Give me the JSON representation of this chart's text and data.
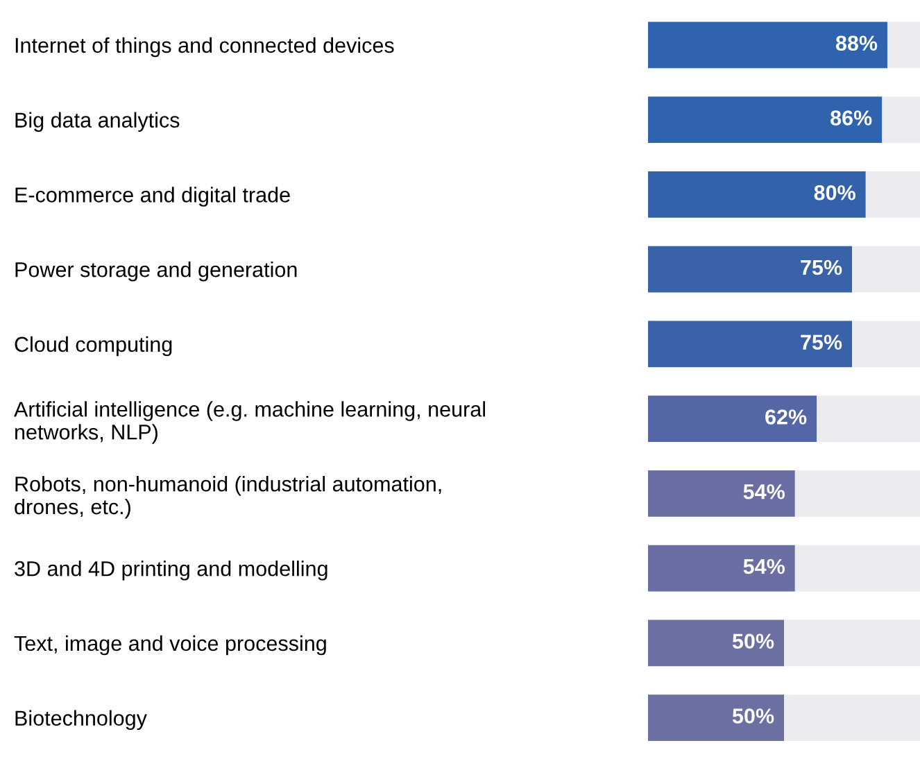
{
  "chart_data": {
    "type": "bar",
    "orientation": "horizontal",
    "categories": [
      "Internet of things and connected devices",
      "Big data analytics",
      "E-commerce and digital trade",
      "Power storage and generation",
      "Cloud computing",
      "Artificial intelligence (e.g. machine learning, neural\nnetworks, NLP)",
      "Robots, non-humanoid (industrial automation,\ndrones, etc.)",
      "3D and 4D printing and modelling",
      "Text, image and voice processing",
      "Biotechnology"
    ],
    "values": [
      88,
      86,
      80,
      75,
      75,
      62,
      54,
      54,
      50,
      50
    ],
    "colors": [
      "#2f63ae",
      "#2f63ae",
      "#3462aa",
      "#3a62a8",
      "#3a62a8",
      "#5566a6",
      "#6a6ea3",
      "#6a6ea3",
      "#6b6fa2",
      "#6b6fa2"
    ],
    "value_labels": [
      "88%",
      "86%",
      "80%",
      "75%",
      "75%",
      "62%",
      "54%",
      "54%",
      "50%",
      "50%"
    ],
    "xlim": [
      0,
      100
    ],
    "tick_labels": "y",
    "grid": false,
    "legend": false
  }
}
